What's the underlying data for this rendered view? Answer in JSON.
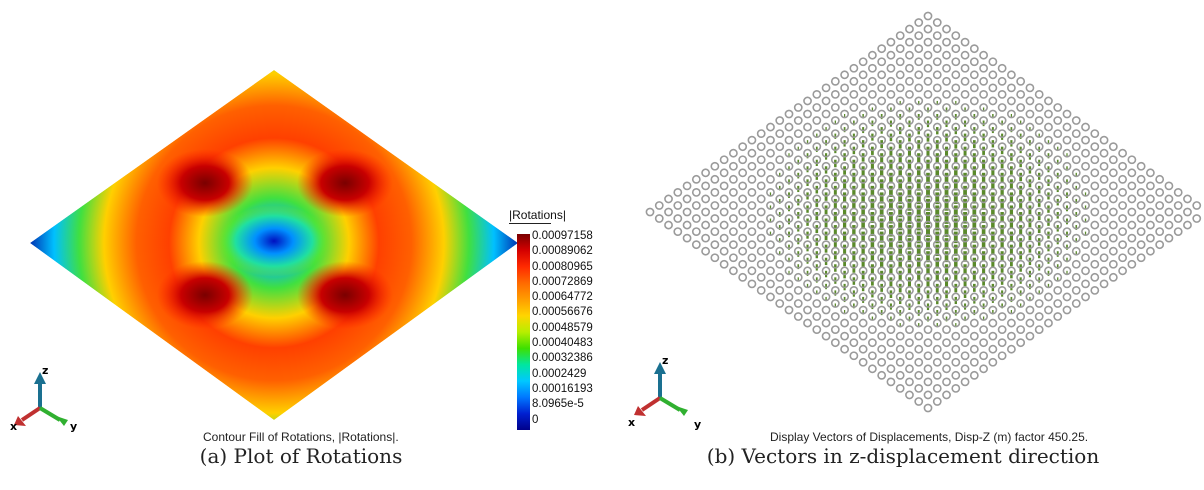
{
  "panel_a": {
    "caption": "(a) Plot of Rotations",
    "plot_title": "Contour Fill of Rotations, |Rotations|.",
    "legend": {
      "title": "|Rotations|",
      "ticks": [
        "0.00097158",
        "0.00089062",
        "0.00080965",
        "0.00072869",
        "0.00064772",
        "0.00056676",
        "0.00048579",
        "0.00040483",
        "0.00032386",
        "0.0002429",
        "0.00016193",
        "8.0965e-5",
        "0"
      ],
      "colors": [
        "#7a0000",
        "#d40000",
        "#ff2a00",
        "#ff6a00",
        "#ff9d00",
        "#ffd500",
        "#b8ee00",
        "#3ee000",
        "#00e6a0",
        "#00c8ff",
        "#0078ff",
        "#0020d0",
        "#00008a"
      ]
    },
    "axes": {
      "x": "x",
      "y": "y",
      "z": "z"
    }
  },
  "panel_b": {
    "caption": "(b) Vectors in z-displacement direction",
    "plot_title": "Display Vectors of Displacements, Disp-Z (m) factor 450.25.",
    "axes": {
      "x": "x",
      "y": "y",
      "z": "z"
    },
    "colors": {
      "node": "#9a9a9a",
      "vector": "#5a8a2a"
    }
  }
}
